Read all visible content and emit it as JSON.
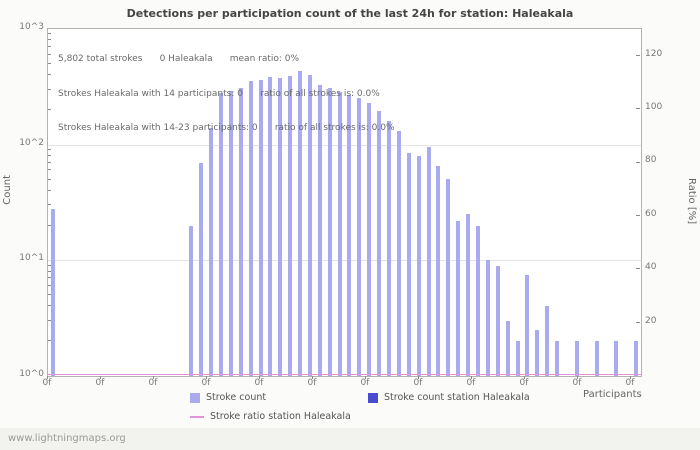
{
  "title": "Detections per participation count of the last 24h for station: Haleakala",
  "watermark": "www.lightningmaps.org",
  "annotations": [
    "5,802 total strokes      0 Haleakala      mean ratio: 0%",
    "Strokes Haleakala with 14 participants: 0      ratio of all strokes is: 0.0%",
    "Strokes Haleakala with 14-23 participants: 0      ratio of all strokes is: 0.0%"
  ],
  "axes": {
    "left_label": "Count",
    "right_label": "Ratio [%]",
    "x_label": "Participants",
    "left_ticks": [
      "10^3",
      "10^2",
      "10^1",
      "10^0"
    ],
    "right_ticks": [
      120,
      100,
      80,
      60,
      40,
      20
    ],
    "x_ticks": [
      "0f",
      "0f",
      "0f",
      "0f",
      "0f",
      "0f",
      "0f",
      "0f",
      "0f",
      "0f",
      "0f",
      "0f"
    ]
  },
  "legend": [
    {
      "label": "Stroke count",
      "color": "#a9abee",
      "type": "square"
    },
    {
      "label": "Stroke count station Haleakala",
      "color": "#4b4bd2",
      "type": "square"
    },
    {
      "label": "Stroke ratio station Haleakala",
      "color": "#e291dc",
      "type": "line"
    }
  ],
  "chart_data": {
    "type": "bar",
    "title": "Detections per participation count of the last 24h for station: Haleakala",
    "xlabel": "Participants",
    "ylabel_left": "Count",
    "ylabel_right": "Ratio [%]",
    "y_scale": "log",
    "ylim_left": [
      1,
      1000
    ],
    "ylim_right": [
      0,
      130
    ],
    "x_start_participant": 0,
    "total_strokes": "5,802",
    "station_strokes": 0,
    "mean_ratio_percent": 0,
    "values": [
      28,
      0,
      0,
      0,
      0,
      0,
      0,
      0,
      0,
      0,
      0,
      0,
      0,
      0,
      20,
      70,
      140,
      280,
      290,
      310,
      355,
      365,
      385,
      380,
      395,
      430,
      400,
      330,
      310,
      285,
      270,
      255,
      230,
      195,
      160,
      130,
      85,
      80,
      95,
      65,
      50,
      22,
      25,
      20,
      10,
      9,
      3,
      2,
      7.5,
      2.5,
      4,
      2,
      0,
      2,
      0,
      2,
      0,
      2,
      0,
      2
    ],
    "station_values_all_zero": true,
    "ratio_values_all_zero": true,
    "colors": {
      "bar": "#a9abee",
      "station_bar": "#4b4bd2",
      "ratio_line": "#e291dc",
      "grid": "#e4e4e4"
    }
  }
}
